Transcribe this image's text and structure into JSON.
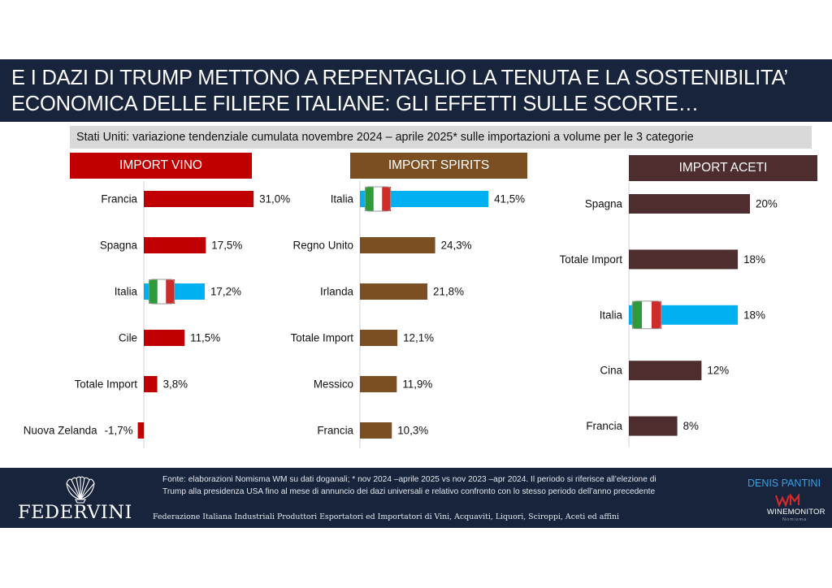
{
  "title": {
    "line1": "E I DAZI DI TRUMP METTONO A REPENTAGLIO LA TENUTA E LA SOSTENIBILITA’",
    "line2": "ECONOMICA DELLE FILIERE ITALIANE: GLI EFFETTI SULLE SCORTE…"
  },
  "subtitle": "Stati Uniti: variazione tendenziale cumulata novembre 2024 – aprile 2025* sulle importazioni a volume per le 3 categorie",
  "colors": {
    "title_bg": "#17243c",
    "vino": "#c00000",
    "spirits": "#7b4f22",
    "aceti": "#4e2d2e",
    "italia": "#00b0f0",
    "flag_green": "#2e9a3c",
    "flag_red": "#cf2b2b"
  },
  "chart_data": [
    {
      "type": "bar",
      "orientation": "horizontal",
      "title": "IMPORT VINO",
      "categories": [
        "Francia",
        "Spagna",
        "Italia",
        "Cile",
        "Totale Import",
        "Nuova Zelanda"
      ],
      "values": [
        31.0,
        17.5,
        17.2,
        11.5,
        3.8,
        -1.7
      ],
      "labels": [
        "31,0%",
        "17,5%",
        "17,2%",
        "11,5%",
        "3,8%",
        "-1,7%"
      ],
      "highlight": "Italia",
      "grid": false
    },
    {
      "type": "bar",
      "orientation": "horizontal",
      "title": "IMPORT SPIRITS",
      "categories": [
        "Italia",
        "Regno Unito",
        "Irlanda",
        "Totale Import",
        "Messico",
        "Francia"
      ],
      "values": [
        41.5,
        24.3,
        21.8,
        12.1,
        11.9,
        10.3
      ],
      "labels": [
        "41,5%",
        "24,3%",
        "21,8%",
        "12,1%",
        "11,9%",
        "10,3%"
      ],
      "highlight": "Italia",
      "grid": false
    },
    {
      "type": "bar",
      "orientation": "horizontal",
      "title": "IMPORT ACETI",
      "categories": [
        "Spagna",
        "Totale Import",
        "Italia",
        "Cina",
        "Francia"
      ],
      "values": [
        20,
        18,
        18,
        12,
        8
      ],
      "labels": [
        "20%",
        "18%",
        "18%",
        "12%",
        "8%"
      ],
      "highlight": "Italia",
      "grid": false
    }
  ],
  "footer": {
    "logo_text": "FEDERVINI",
    "federation": "Federazione Italiana Industriali Produttori Esportatori ed Importatori di Vini, Acquaviti, Liquori, Sciroppi, Aceti ed affini",
    "source_line1": "Fonte: elaborazioni Nomisma WM su dati doganali; * nov 2024 –aprile 2025 vs nov 2023 –apr 2024. Il periodo si riferisce all’elezione di",
    "source_line2": "Trump alla presidenza USA fino al mese di annuncio dei dazi universali e relativo confronto con lo stesso periodo dell’anno precedente",
    "author": "DENIS PANTINI",
    "wm_text": "WINEMONITOR",
    "wm_sub": "Nomisma"
  }
}
